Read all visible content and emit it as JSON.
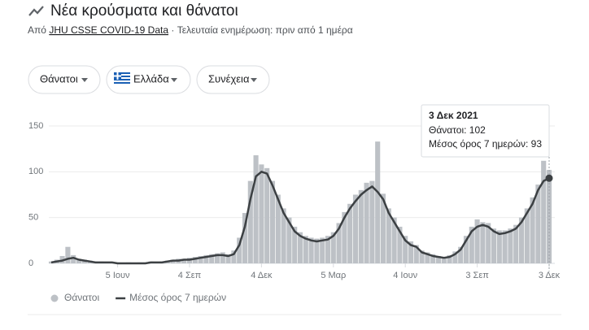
{
  "header": {
    "title": "Νέα κρούσματα και θάνατοι",
    "source_prefix": "Από",
    "source_link": "JHU CSSE COVID-19 Data",
    "updated": "· Τελευταία ενημέρωση: πριν από 1 ημέρα"
  },
  "filters": [
    "Θάνατοι",
    "Ελλάδα",
    "Συνέχεια"
  ],
  "tooltip": {
    "title": "3 Δεκ 2021",
    "lines": [
      "Θάνατοι: 102",
      "Μέσος όρος 7 ημερών: 93"
    ]
  },
  "chart_data": {
    "type": "bar",
    "categories": [
      null,
      null,
      null,
      null,
      null,
      null,
      null,
      null,
      null,
      null,
      null,
      null,
      "5 Ιουν",
      null,
      null,
      null,
      null,
      null,
      null,
      null,
      null,
      null,
      null,
      null,
      null,
      "4 Σεπ",
      null,
      null,
      null,
      null,
      null,
      null,
      null,
      null,
      null,
      null,
      null,
      null,
      "4 Δεκ",
      null,
      null,
      null,
      null,
      null,
      null,
      null,
      null,
      null,
      null,
      null,
      null,
      "5 Μαρ",
      null,
      null,
      null,
      null,
      null,
      null,
      null,
      null,
      null,
      null,
      null,
      null,
      "4 Ιουν",
      null,
      null,
      null,
      null,
      null,
      null,
      null,
      null,
      null,
      null,
      null,
      null,
      "3 Σεπ",
      null,
      null,
      null,
      null,
      null,
      null,
      null,
      null,
      null,
      null,
      null,
      null,
      "3 Δεκ"
    ],
    "series": [
      {
        "name": "Θάνατοι",
        "type": "bar",
        "color": "#bdc1c6",
        "values": [
          2,
          4,
          8,
          18,
          9,
          5,
          4,
          3,
          2,
          2,
          1,
          1,
          1,
          0,
          1,
          0,
          1,
          1,
          2,
          1,
          2,
          3,
          4,
          5,
          5,
          6,
          7,
          8,
          9,
          10,
          11,
          12,
          10,
          14,
          28,
          55,
          90,
          118,
          108,
          104,
          90,
          75,
          60,
          50,
          40,
          34,
          30,
          28,
          27,
          28,
          30,
          34,
          44,
          56,
          65,
          75,
          80,
          88,
          90,
          133,
          76,
          60,
          50,
          40,
          30,
          24,
          20,
          14,
          12,
          10,
          8,
          7,
          9,
          13,
          18,
          30,
          40,
          48,
          45,
          44,
          38,
          36,
          36,
          38,
          42,
          50,
          60,
          72,
          86,
          112,
          102
        ]
      },
      {
        "name": "Μέσος όρος 7 ημερών",
        "type": "line",
        "color": "#3c4043",
        "values": [
          1,
          2,
          3,
          5,
          6,
          4,
          3,
          2,
          1,
          1,
          1,
          1,
          0,
          0,
          0,
          0,
          0,
          0,
          1,
          1,
          1,
          2,
          3,
          3,
          4,
          4,
          5,
          6,
          7,
          8,
          9,
          9,
          8,
          10,
          20,
          40,
          70,
          95,
          100,
          98,
          85,
          70,
          55,
          45,
          35,
          30,
          27,
          25,
          24,
          25,
          26,
          30,
          38,
          50,
          60,
          68,
          75,
          80,
          84,
          78,
          70,
          55,
          45,
          35,
          25,
          20,
          18,
          12,
          10,
          8,
          7,
          6,
          7,
          10,
          15,
          25,
          35,
          40,
          42,
          40,
          35,
          32,
          33,
          35,
          38,
          45,
          55,
          65,
          80,
          90,
          93
        ]
      }
    ],
    "ylim": [
      0,
      150
    ],
    "yticks": [
      0,
      50,
      100,
      150
    ],
    "grid": true
  }
}
